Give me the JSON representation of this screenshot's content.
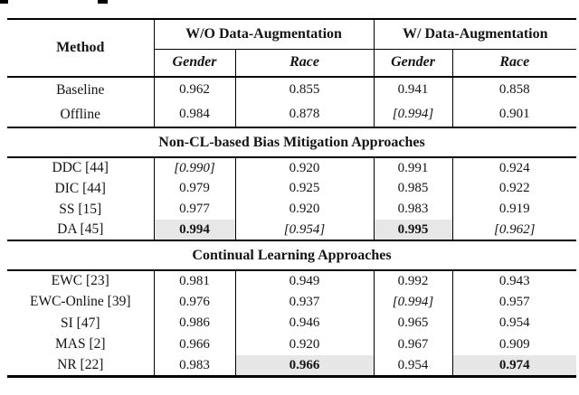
{
  "figure": {
    "top_cropped_fragment_marks": [
      "[",
      "]"
    ]
  },
  "table": {
    "headers": {
      "method": "Method",
      "group_wo": "W/O Data-Augmentation",
      "group_w": "W/ Data-Augmentation",
      "sub": [
        "Gender",
        "Race",
        "Gender",
        "Race"
      ]
    },
    "sections": [
      {
        "header": null,
        "rows": [
          {
            "method": "Baseline",
            "values": [
              {
                "text": "0.962"
              },
              {
                "text": "0.855"
              },
              {
                "text": "0.941"
              },
              {
                "text": "0.858"
              }
            ]
          },
          {
            "method": "Offline",
            "values": [
              {
                "text": "0.984"
              },
              {
                "text": "0.878"
              },
              {
                "text": "[0.994]",
                "style": "bracket"
              },
              {
                "text": "0.901"
              }
            ]
          }
        ]
      },
      {
        "header": "Non-CL-based Bias Mitigation Approaches",
        "rows": [
          {
            "method": "DDC [44]",
            "values": [
              {
                "text": "[0.990]",
                "style": "bracket"
              },
              {
                "text": "0.920"
              },
              {
                "text": "0.991"
              },
              {
                "text": "0.924"
              }
            ]
          },
          {
            "method": "DIC [44]",
            "values": [
              {
                "text": "0.979"
              },
              {
                "text": "0.925"
              },
              {
                "text": "0.985"
              },
              {
                "text": "0.922"
              }
            ]
          },
          {
            "method": "SS [15]",
            "values": [
              {
                "text": "0.977"
              },
              {
                "text": "0.920"
              },
              {
                "text": "0.983"
              },
              {
                "text": "0.919"
              }
            ]
          },
          {
            "method": "DA [45]",
            "values": [
              {
                "text": "0.994",
                "style": "best"
              },
              {
                "text": "[0.954]",
                "style": "bracket"
              },
              {
                "text": "0.995",
                "style": "best"
              },
              {
                "text": "[0.962]",
                "style": "bracket"
              }
            ]
          }
        ]
      },
      {
        "header": "Continual Learning Approaches",
        "rows": [
          {
            "method": "EWC [23]",
            "values": [
              {
                "text": "0.981"
              },
              {
                "text": "0.949"
              },
              {
                "text": "0.992"
              },
              {
                "text": "0.943"
              }
            ]
          },
          {
            "method": "EWC-Online [39]",
            "values": [
              {
                "text": "0.976"
              },
              {
                "text": "0.937"
              },
              {
                "text": "[0.994]",
                "style": "bracket"
              },
              {
                "text": "0.957"
              }
            ]
          },
          {
            "method": "SI [47]",
            "values": [
              {
                "text": "0.986"
              },
              {
                "text": "0.946"
              },
              {
                "text": "0.965"
              },
              {
                "text": "0.954"
              }
            ]
          },
          {
            "method": "MAS [2]",
            "values": [
              {
                "text": "0.966"
              },
              {
                "text": "0.920"
              },
              {
                "text": "0.967"
              },
              {
                "text": "0.909"
              }
            ]
          },
          {
            "method": "NR [22]",
            "values": [
              {
                "text": "0.983"
              },
              {
                "text": "0.966",
                "style": "best"
              },
              {
                "text": "0.954"
              },
              {
                "text": "0.974",
                "style": "best"
              }
            ]
          }
        ]
      }
    ],
    "colors": {
      "highlight": "#e7e7e7",
      "rule": "#000000",
      "text": "#141414"
    }
  }
}
